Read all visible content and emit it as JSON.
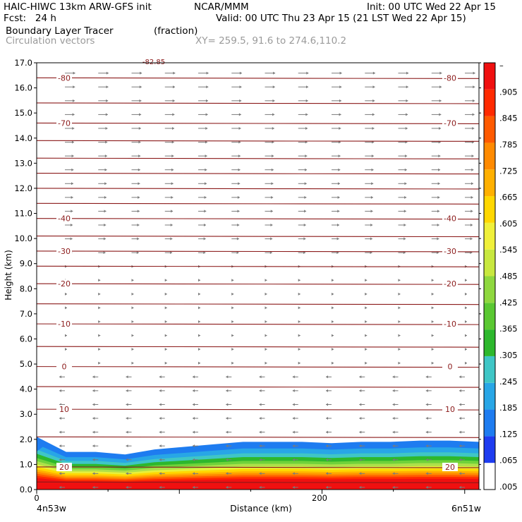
{
  "header": {
    "model": "HAIC-HIWC 13km ARW-GFS init",
    "org": "NCAR/MMM",
    "init": "Init: 00 UTC Wed 22 Apr 15",
    "fcst": "Fcst:   24 h",
    "valid": "Valid: 00 UTC Thu 23 Apr 15 (21 LST Wed 22 Apr 15)",
    "field": "Boundary Layer Tracer",
    "units": "(fraction)",
    "vectors": "Circulation vectors",
    "xy": "XY= 259.5, 91.6 to 274.6,110.2"
  },
  "colors": {
    "contour": "#8b1a1a",
    "vector": "#7a7a7a",
    "shading": [
      "#ffffff",
      "#1e7cf0",
      "#28a6e6",
      "#3fc6c6",
      "#2db82d",
      "#6fd23a",
      "#aee04a",
      "#e8f03a",
      "#ffd700",
      "#ffb000",
      "#ff8a00",
      "#ff5a00",
      "#ff2a00",
      "#f01010"
    ]
  },
  "chart_data": {
    "type": "heatmap",
    "title": "Boundary Layer Tracer",
    "units": "(fraction)",
    "overlay": "Circulation vectors",
    "xlabel": "Distance (km)",
    "ylabel": "Height (km)",
    "xlim": [
      0,
      310
    ],
    "ylim": [
      0,
      17
    ],
    "x_tick_labels": [
      {
        "x": 0,
        "label": "0"
      },
      {
        "x": 200,
        "label": "200"
      }
    ],
    "x_end_labels": {
      "left": "4n53w",
      "right": "6n51w"
    },
    "y_ticks": [
      0.0,
      1.0,
      2.0,
      3.0,
      4.0,
      5.0,
      6.0,
      7.0,
      8.0,
      9.0,
      10.0,
      11.0,
      12.0,
      13.0,
      14.0,
      15.0,
      16.0,
      17.0
    ],
    "y_tick_labels": [
      "0.0",
      "1.0",
      "2.0",
      "3.0",
      "4.0",
      "5.0",
      "6.0",
      "7.0",
      "8.0",
      "9.0",
      "10.0",
      "11.0",
      "12.0",
      "13.0",
      "14.0",
      "15.0",
      "16.0",
      "17.0"
    ],
    "colorbar_labels": [
      "–",
      ".905",
      ".845",
      ".785",
      ".725",
      ".665",
      ".605",
      ".545",
      ".485",
      ".425",
      ".365",
      ".305",
      ".245",
      ".185",
      ".125",
      ".065",
      ".005"
    ],
    "temperature_contours": [
      {
        "level": "-80",
        "height": 16.4
      },
      {
        "level": "-70",
        "height": 14.6
      },
      {
        "level": "-40",
        "height": 10.8
      },
      {
        "level": "-30",
        "height": 9.5
      },
      {
        "level": "-20",
        "height": 8.2
      },
      {
        "level": "-10",
        "height": 6.6
      },
      {
        "level": "0",
        "height": 4.9
      },
      {
        "level": "10",
        "height": 3.2
      },
      {
        "level": "20",
        "height": 0.9
      }
    ],
    "unlabeled_contour_heights": [
      15.4,
      13.9,
      13.2,
      12.6,
      12.0,
      11.4,
      10.1,
      8.9,
      7.4,
      5.7,
      4.1,
      2.1,
      0.3
    ],
    "top_label": "-82.85",
    "tracer_top_height": [
      2.1,
      1.5,
      1.5,
      1.4,
      1.6,
      1.7,
      1.8,
      1.9,
      1.9,
      1.9,
      1.85,
      1.9,
      1.9,
      1.95,
      1.95,
      1.9
    ],
    "wind_direction_boundary_height": 5.0
  },
  "axes": {
    "xlabel": "Distance (km)",
    "ylabel": "Height (km)",
    "left_end": "4n53w",
    "right_end": "6n51w",
    "x_tick_0": "0",
    "x_tick_200": "200"
  }
}
